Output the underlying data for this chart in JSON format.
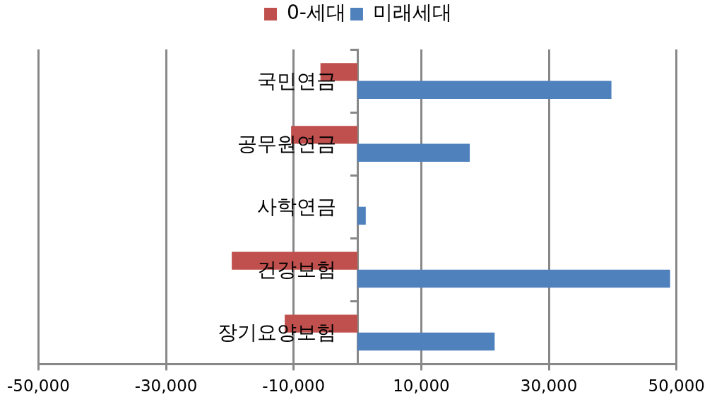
{
  "chart_data": {
    "type": "bar",
    "orientation": "horizontal",
    "legend": "top",
    "grid": "x",
    "categories": [
      "국민연금",
      "공무원연금",
      "사학연금",
      "건강보험",
      "장기요양보험"
    ],
    "series": [
      {
        "name": "0-세대",
        "color": "#c0504d",
        "values": [
          -5800,
          -10400,
          0,
          -19700,
          -11400
        ]
      },
      {
        "name": "미래세대",
        "color": "#4f81bd",
        "values": [
          39800,
          17600,
          1300,
          49000,
          21500
        ]
      }
    ],
    "xlim": [
      -50000,
      50000
    ],
    "xticks": [
      {
        "value": -50000,
        "label": "-50,000"
      },
      {
        "value": -30000,
        "label": "-30,000"
      },
      {
        "value": -10000,
        "label": "-10,000"
      },
      {
        "value": 10000,
        "label": "10,000"
      },
      {
        "value": 30000,
        "label": "30,000"
      },
      {
        "value": 50000,
        "label": "50,000"
      }
    ]
  }
}
